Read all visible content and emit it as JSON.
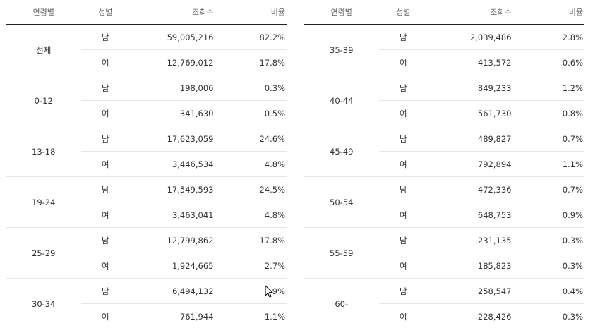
{
  "headers": {
    "age": "연령별",
    "gender": "성별",
    "views": "조회수",
    "ratio": "비율"
  },
  "left_groups": [
    {
      "age": "전체",
      "rows": [
        {
          "gender": "남",
          "views": "59,005,216",
          "ratio": "82.2%"
        },
        {
          "gender": "여",
          "views": "12,769,012",
          "ratio": "17.8%"
        }
      ]
    },
    {
      "age": "0-12",
      "rows": [
        {
          "gender": "남",
          "views": "198,006",
          "ratio": "0.3%"
        },
        {
          "gender": "여",
          "views": "341,630",
          "ratio": "0.5%"
        }
      ]
    },
    {
      "age": "13-18",
      "rows": [
        {
          "gender": "남",
          "views": "17,623,059",
          "ratio": "24.6%"
        },
        {
          "gender": "여",
          "views": "3,446,534",
          "ratio": "4.8%"
        }
      ]
    },
    {
      "age": "19-24",
      "rows": [
        {
          "gender": "남",
          "views": "17,549,593",
          "ratio": "24.5%"
        },
        {
          "gender": "여",
          "views": "3,463,041",
          "ratio": "4.8%"
        }
      ]
    },
    {
      "age": "25-29",
      "rows": [
        {
          "gender": "남",
          "views": "12,799,862",
          "ratio": "17.8%"
        },
        {
          "gender": "여",
          "views": "1,924,665",
          "ratio": "2.7%"
        }
      ]
    },
    {
      "age": "30-34",
      "rows": [
        {
          "gender": "남",
          "views": "6,494,132",
          "ratio": "9%"
        },
        {
          "gender": "여",
          "views": "761,944",
          "ratio": "1.1%"
        }
      ]
    }
  ],
  "right_groups": [
    {
      "age": "35-39",
      "rows": [
        {
          "gender": "남",
          "views": "2,039,486",
          "ratio": "2.8%"
        },
        {
          "gender": "여",
          "views": "413,572",
          "ratio": "0.6%"
        }
      ]
    },
    {
      "age": "40-44",
      "rows": [
        {
          "gender": "남",
          "views": "849,233",
          "ratio": "1.2%"
        },
        {
          "gender": "여",
          "views": "561,730",
          "ratio": "0.8%"
        }
      ]
    },
    {
      "age": "45-49",
      "rows": [
        {
          "gender": "남",
          "views": "489,827",
          "ratio": "0.7%"
        },
        {
          "gender": "여",
          "views": "792,894",
          "ratio": "1.1%"
        }
      ]
    },
    {
      "age": "50-54",
      "rows": [
        {
          "gender": "남",
          "views": "472,336",
          "ratio": "0.7%"
        },
        {
          "gender": "여",
          "views": "648,753",
          "ratio": "0.9%"
        }
      ]
    },
    {
      "age": "55-59",
      "rows": [
        {
          "gender": "남",
          "views": "231,135",
          "ratio": "0.3%"
        },
        {
          "gender": "여",
          "views": "185,823",
          "ratio": "0.3%"
        }
      ]
    },
    {
      "age": "60-",
      "rows": [
        {
          "gender": "남",
          "views": "258,547",
          "ratio": "0.4%"
        },
        {
          "gender": "여",
          "views": "228,426",
          "ratio": "0.3%"
        }
      ]
    }
  ]
}
